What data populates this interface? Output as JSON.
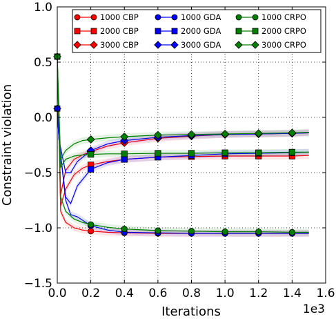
{
  "chart_data": {
    "type": "line",
    "title": "",
    "xlabel": "Iterations",
    "ylabel": "Constraint violation",
    "x_multiplier_label": "1e3",
    "xlim": [
      0.0,
      1.6
    ],
    "ylim": [
      -1.5,
      1.0
    ],
    "x_ticks": [
      "0.0",
      "0.2",
      "0.4",
      "0.6",
      "0.8",
      "1.0",
      "1.2",
      "1.4",
      "1.6"
    ],
    "y_ticks": [
      "1.0",
      "0.5",
      "0.0",
      "−0.5",
      "−1.0",
      "−1.5"
    ],
    "grid": true,
    "legend_position": "top",
    "colors": {
      "CBP": "#ff0000",
      "GDA": "#0000ff",
      "CRPO": "#008000"
    },
    "marker_x": [
      0.2,
      0.4,
      0.6,
      0.8,
      1.0,
      1.2,
      1.4
    ],
    "series": [
      {
        "name": "1000 CBP",
        "method": "CBP",
        "marker": "circle",
        "x": [
          0,
          0.02,
          0.05,
          0.1,
          0.15,
          0.2,
          0.3,
          0.4,
          0.6,
          0.8,
          1.0,
          1.2,
          1.4,
          1.5
        ],
        "y": [
          0.55,
          -0.85,
          -0.95,
          -1.0,
          -1.02,
          -1.03,
          -1.04,
          -1.045,
          -1.05,
          -1.05,
          -1.05,
          -1.05,
          -1.05,
          -1.05
        ]
      },
      {
        "name": "2000 CBP",
        "method": "CBP",
        "marker": "square",
        "x": [
          0,
          0.02,
          0.05,
          0.1,
          0.15,
          0.2,
          0.3,
          0.4,
          0.6,
          0.8,
          1.0,
          1.2,
          1.4,
          1.5
        ],
        "y": [
          0.55,
          -0.8,
          -0.65,
          -0.52,
          -0.46,
          -0.43,
          -0.4,
          -0.38,
          -0.36,
          -0.355,
          -0.35,
          -0.35,
          -0.35,
          -0.345
        ]
      },
      {
        "name": "3000 CBP",
        "method": "CBP",
        "marker": "diamond",
        "x": [
          0,
          0.02,
          0.05,
          0.1,
          0.15,
          0.2,
          0.3,
          0.4,
          0.6,
          0.8,
          1.0,
          1.2,
          1.4,
          1.5
        ],
        "y": [
          0.55,
          -0.7,
          -0.48,
          -0.38,
          -0.34,
          -0.31,
          -0.26,
          -0.23,
          -0.19,
          -0.17,
          -0.155,
          -0.15,
          -0.145,
          -0.14
        ]
      },
      {
        "name": "1000 GDA",
        "method": "GDA",
        "marker": "circle",
        "x": [
          0,
          0.01,
          0.05,
          0.08,
          0.12,
          0.2,
          0.3,
          0.4,
          0.6,
          0.8,
          1.0,
          1.2,
          1.4,
          1.5
        ],
        "y": [
          0.08,
          -0.2,
          -0.75,
          -0.88,
          -0.9,
          -0.98,
          -1.02,
          -1.04,
          -1.045,
          -1.05,
          -1.05,
          -1.05,
          -1.05,
          -1.05
        ]
      },
      {
        "name": "2000 GDA",
        "method": "GDA",
        "marker": "square",
        "x": [
          0,
          0.01,
          0.05,
          0.08,
          0.12,
          0.2,
          0.3,
          0.4,
          0.6,
          0.8,
          1.0,
          1.2,
          1.4,
          1.5
        ],
        "y": [
          0.08,
          -0.2,
          -0.72,
          -0.78,
          -0.62,
          -0.47,
          -0.41,
          -0.38,
          -0.36,
          -0.345,
          -0.33,
          -0.325,
          -0.32,
          -0.315
        ]
      },
      {
        "name": "3000 GDA",
        "method": "GDA",
        "marker": "diamond",
        "x": [
          0,
          0.01,
          0.05,
          0.08,
          0.12,
          0.2,
          0.3,
          0.4,
          0.6,
          0.8,
          1.0,
          1.2,
          1.4,
          1.5
        ],
        "y": [
          0.08,
          -0.2,
          -0.5,
          -0.5,
          -0.4,
          -0.3,
          -0.24,
          -0.21,
          -0.18,
          -0.165,
          -0.155,
          -0.15,
          -0.145,
          -0.14
        ]
      },
      {
        "name": "1000 CRPO",
        "method": "CRPO",
        "marker": "circle",
        "x": [
          0,
          0.02,
          0.05,
          0.1,
          0.15,
          0.2,
          0.3,
          0.4,
          0.6,
          0.8,
          1.0,
          1.2,
          1.4,
          1.5
        ],
        "y": [
          0.55,
          -0.72,
          -0.85,
          -0.92,
          -0.95,
          -0.97,
          -0.995,
          -1.01,
          -1.025,
          -1.03,
          -1.035,
          -1.035,
          -1.04,
          -1.04
        ]
      },
      {
        "name": "2000 CRPO",
        "method": "CRPO",
        "marker": "square",
        "x": [
          0,
          0.02,
          0.05,
          0.1,
          0.15,
          0.2,
          0.3,
          0.4,
          0.6,
          0.8,
          1.0,
          1.2,
          1.4,
          1.5
        ],
        "y": [
          0.55,
          -0.45,
          -0.38,
          -0.35,
          -0.34,
          -0.335,
          -0.33,
          -0.33,
          -0.325,
          -0.325,
          -0.32,
          -0.32,
          -0.315,
          -0.315
        ]
      },
      {
        "name": "3000 CRPO",
        "method": "CRPO",
        "marker": "diamond",
        "x": [
          0,
          0.02,
          0.05,
          0.1,
          0.15,
          0.2,
          0.3,
          0.4,
          0.6,
          0.8,
          1.0,
          1.2,
          1.4,
          1.5
        ],
        "y": [
          0.55,
          -0.38,
          -0.3,
          -0.24,
          -0.21,
          -0.2,
          -0.185,
          -0.175,
          -0.16,
          -0.155,
          -0.15,
          -0.145,
          -0.14,
          -0.135
        ]
      }
    ]
  }
}
